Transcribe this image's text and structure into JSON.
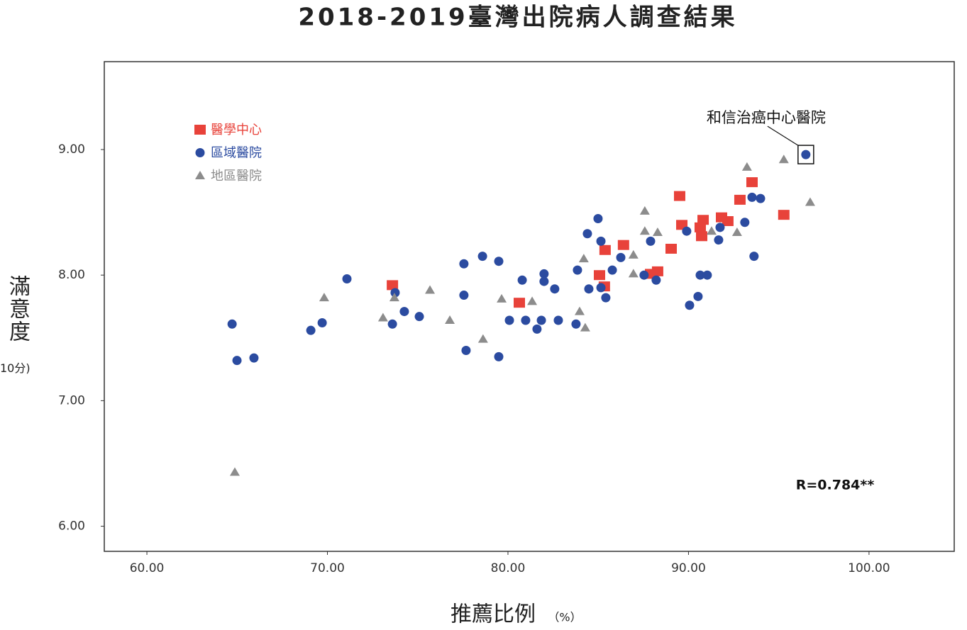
{
  "chart_data": {
    "type": "scatter",
    "title": "2018-2019臺灣出院病人調查結果",
    "xlabel": "推薦比例",
    "xlabel_unit": "（%）",
    "ylabel": "滿意度",
    "ylabel_unit": "10分)",
    "stats_text": "R=0.784**",
    "xlim": [
      57.64,
      104.72
    ],
    "ylim": [
      5.8,
      9.7
    ],
    "xticks": [
      {
        "value": 60,
        "label": "60.00"
      },
      {
        "value": 70,
        "label": "70.00"
      },
      {
        "value": 80,
        "label": "80.00"
      },
      {
        "value": 90,
        "label": "90.00"
      },
      {
        "value": 100,
        "label": "100.00"
      }
    ],
    "yticks": [
      {
        "value": 6,
        "label": "6.00"
      },
      {
        "value": 7,
        "label": "7.00"
      },
      {
        "value": 8,
        "label": "8.00"
      },
      {
        "value": 9,
        "label": "9.00"
      }
    ],
    "grid": false,
    "legend": "upper left",
    "annotations": [
      {
        "text": "和信治癌中心醫院",
        "x": 96.5,
        "y": 8.96
      }
    ],
    "series": [
      {
        "name": "醫學中心",
        "color": "#e8423a",
        "marker": "square",
        "x": [
          73.6,
          80.63,
          85.07,
          85.34,
          85.38,
          86.4,
          87.9,
          88.29,
          89.04,
          89.51,
          89.63,
          90.65,
          90.73,
          90.81,
          91.83,
          92.18,
          92.85,
          93.52,
          95.28
        ],
        "values": [
          7.92,
          7.78,
          8.0,
          7.91,
          8.2,
          8.24,
          8.01,
          8.03,
          8.21,
          8.63,
          8.4,
          8.38,
          8.31,
          8.44,
          8.46,
          8.43,
          8.6,
          8.74,
          8.48
        ]
      },
      {
        "name": "區域醫院",
        "color": "#2b4ba0",
        "marker": "circle",
        "x": [
          64.72,
          64.99,
          65.93,
          69.08,
          69.71,
          71.08,
          73.6,
          73.75,
          74.26,
          75.09,
          77.56,
          77.56,
          77.68,
          78.59,
          79.49,
          79.49,
          80.08,
          80.79,
          80.98,
          81.61,
          81.85,
          82.0,
          82.0,
          82.59,
          82.79,
          83.77,
          83.85,
          84.4,
          84.48,
          84.99,
          85.15,
          85.15,
          85.42,
          85.78,
          86.25,
          87.54,
          87.9,
          88.21,
          89.9,
          90.06,
          90.53,
          90.65,
          91.04,
          91.67,
          91.75,
          93.12,
          93.52,
          93.63,
          93.99,
          96.5
        ],
        "values": [
          7.61,
          7.32,
          7.34,
          7.56,
          7.62,
          7.97,
          7.61,
          7.86,
          7.71,
          7.67,
          8.09,
          7.84,
          7.4,
          8.15,
          8.11,
          7.35,
          7.64,
          7.96,
          7.64,
          7.57,
          7.64,
          8.01,
          7.95,
          7.89,
          7.64,
          7.61,
          8.04,
          8.33,
          7.89,
          8.45,
          8.27,
          7.9,
          7.82,
          8.04,
          8.14,
          8.0,
          8.27,
          7.96,
          8.35,
          7.76,
          7.83,
          8.0,
          8.0,
          8.28,
          8.38,
          8.42,
          8.62,
          8.15,
          8.61,
          8.96
        ]
      },
      {
        "name": "地區醫院",
        "color": "#8c8c8c",
        "marker": "triangle",
        "x": [
          64.87,
          69.82,
          73.08,
          73.71,
          75.68,
          76.78,
          78.62,
          79.65,
          81.34,
          83.97,
          84.2,
          84.28,
          86.95,
          86.95,
          87.58,
          87.58,
          88.29,
          91.28,
          92.69,
          93.24,
          95.28,
          96.74
        ],
        "values": [
          6.43,
          7.82,
          7.66,
          7.82,
          7.88,
          7.64,
          7.49,
          7.81,
          7.79,
          7.71,
          8.13,
          7.58,
          8.16,
          8.01,
          8.51,
          8.35,
          8.34,
          8.35,
          8.34,
          8.86,
          8.92,
          8.58
        ]
      }
    ]
  }
}
